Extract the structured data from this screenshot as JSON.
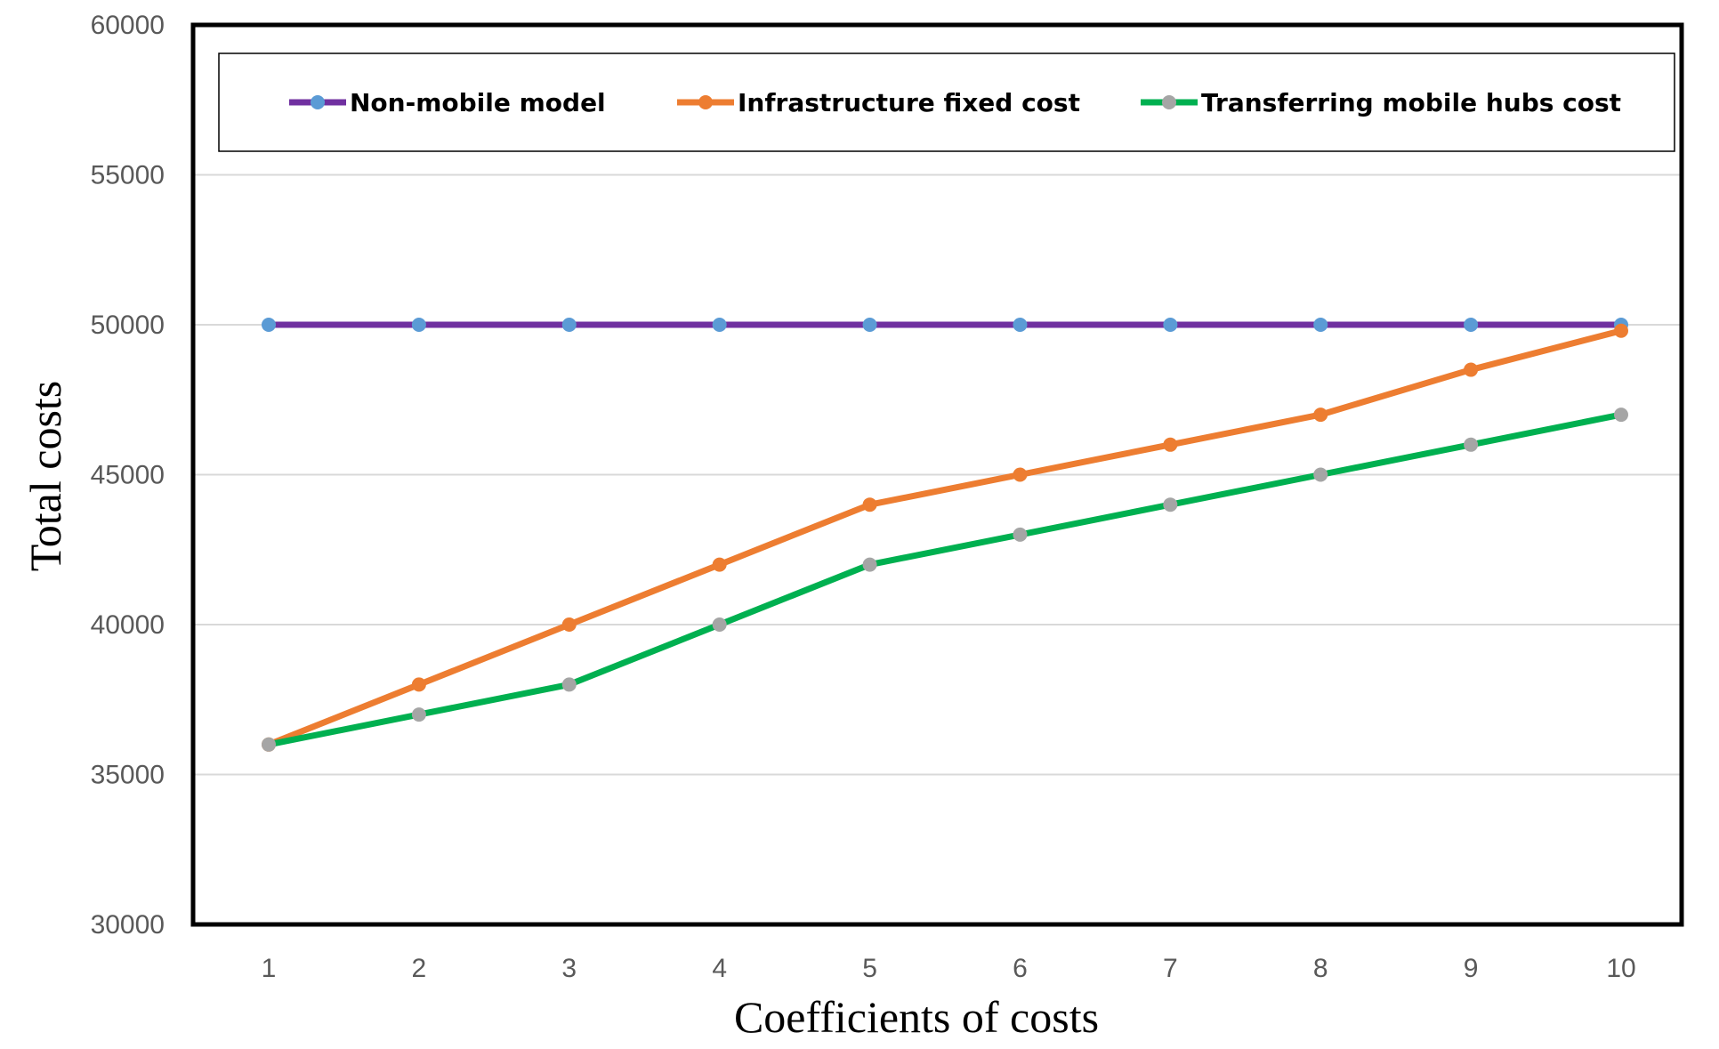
{
  "chart_data": {
    "type": "line",
    "title": "",
    "xlabel": "Coefficients of costs",
    "ylabel": "Total costs",
    "x": [
      1,
      2,
      3,
      4,
      5,
      6,
      7,
      8,
      9,
      10
    ],
    "x_tick_labels": [
      "1",
      "2",
      "3",
      "4",
      "5",
      "6",
      "7",
      "8",
      "9",
      "10"
    ],
    "ylim": [
      30000,
      60000
    ],
    "y_ticks": [
      30000,
      35000,
      40000,
      45000,
      50000,
      55000,
      60000
    ],
    "y_tick_labels": [
      "30000",
      "35000",
      "40000",
      "45000",
      "50000",
      "55000",
      "60000"
    ],
    "grid": true,
    "legend_position": "top",
    "series": [
      {
        "name": "Non-mobile model",
        "values": [
          50000,
          50000,
          50000,
          50000,
          50000,
          50000,
          50000,
          50000,
          50000,
          50000
        ],
        "line_color": "#7030A0",
        "marker_color": "#5B9BD5"
      },
      {
        "name": "Infrastructure fixed cost",
        "values": [
          36000,
          38000,
          40000,
          42000,
          44000,
          45000,
          46000,
          47000,
          48500,
          49800
        ],
        "line_color": "#ED7D31",
        "marker_color": "#ED7D31"
      },
      {
        "name": "Transferring mobile hubs cost",
        "values": [
          36000,
          37000,
          38000,
          40000,
          42000,
          43000,
          44000,
          45000,
          46000,
          47000
        ],
        "line_color": "#00B050",
        "marker_color": "#A5A5A5"
      }
    ]
  }
}
